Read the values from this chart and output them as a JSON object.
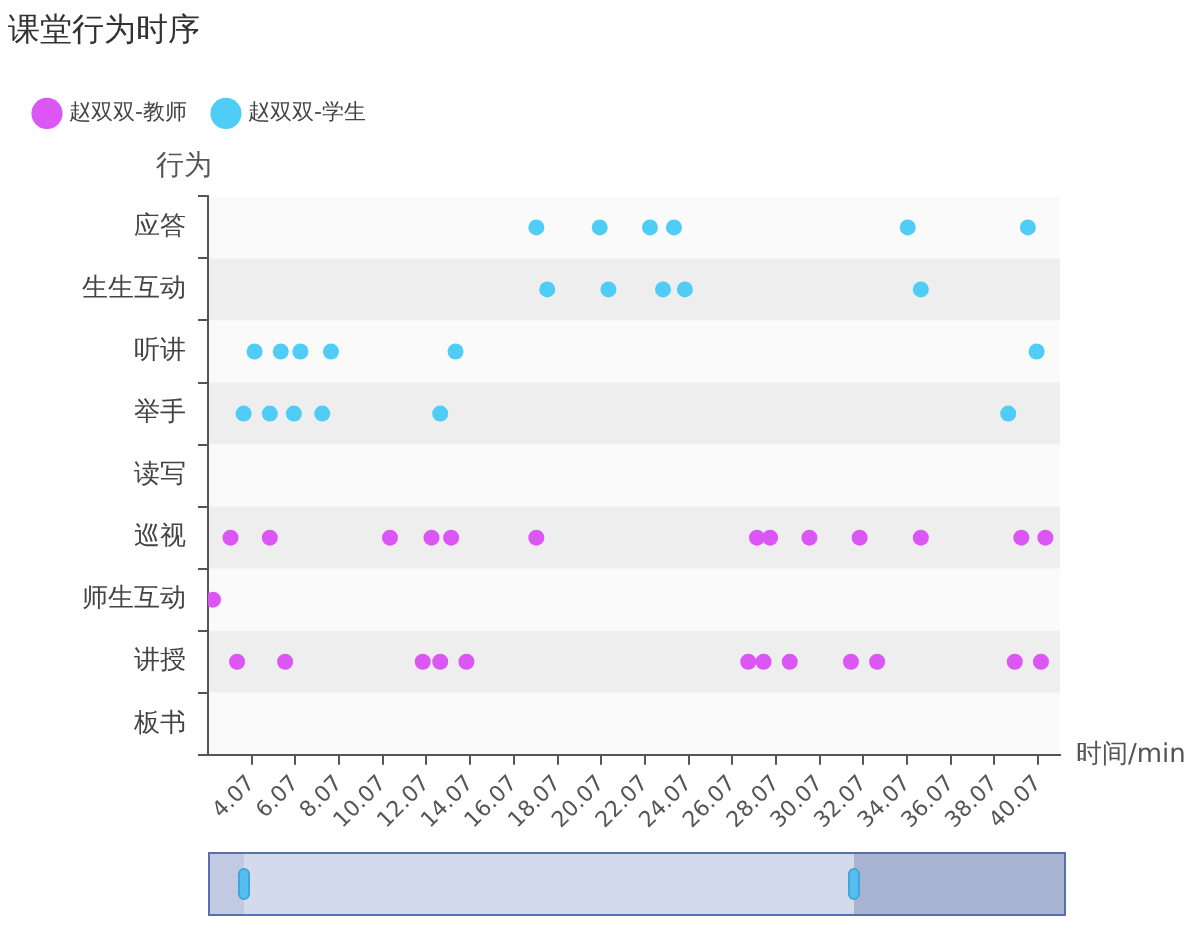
{
  "chart_data": {
    "type": "scatter",
    "orientation": "horizontal",
    "title": "课堂行为时序",
    "ylabel": "行为",
    "xlabel": "时间/min",
    "categories": [
      "应答",
      "生生互动",
      "听讲",
      "举手",
      "读写",
      "巡视",
      "师生互动",
      "讲授",
      "板书"
    ],
    "series": [
      {
        "name": "赵双双-教师",
        "color": "#dc55f5",
        "x": [
          "巡视",
          "巡视",
          "巡视",
          "巡视",
          "巡视",
          "巡视",
          "巡视",
          "巡视",
          "巡视",
          "巡视",
          "巡视",
          "巡视",
          "巡视",
          "师生互动",
          "讲授",
          "讲授",
          "讲授",
          "讲授",
          "讲授",
          "讲授",
          "讲授",
          "讲授",
          "讲授",
          "讲授",
          "讲授",
          "讲授"
        ],
        "values": [
          3.1,
          4.9,
          10.4,
          12.3,
          13.2,
          17.1,
          27.2,
          27.8,
          29.6,
          31.9,
          34.7,
          39.3,
          40.4,
          2.3,
          3.4,
          5.6,
          11.9,
          12.7,
          13.9,
          26.8,
          27.5,
          28.7,
          31.5,
          32.7,
          39.0,
          40.2
        ]
      },
      {
        "name": "赵双双-学生",
        "color": "#4fcdf7",
        "x": [
          "应答",
          "应答",
          "应答",
          "应答",
          "应答",
          "应答",
          "生生互动",
          "生生互动",
          "生生互动",
          "生生互动",
          "生生互动",
          "听讲",
          "听讲",
          "听讲",
          "听讲",
          "听讲",
          "听讲",
          "举手",
          "举手",
          "举手",
          "举手",
          "举手",
          "举手"
        ],
        "values": [
          17.1,
          20.0,
          22.3,
          23.4,
          34.1,
          39.6,
          17.6,
          20.4,
          22.9,
          23.9,
          34.7,
          4.2,
          5.4,
          6.3,
          7.7,
          13.4,
          40.0,
          3.7,
          4.9,
          6.0,
          7.3,
          12.7,
          38.7
        ]
      }
    ],
    "xlim": [
      2.07,
      41.07
    ],
    "xticks": [
      4.07,
      6.07,
      8.07,
      10.07,
      12.07,
      14.07,
      16.07,
      18.07,
      20.07,
      22.07,
      24.07,
      26.07,
      28.07,
      30.07,
      32.07,
      34.07,
      36.07,
      38.07,
      40.07
    ],
    "legend": "top left",
    "marker": "circle"
  }
}
